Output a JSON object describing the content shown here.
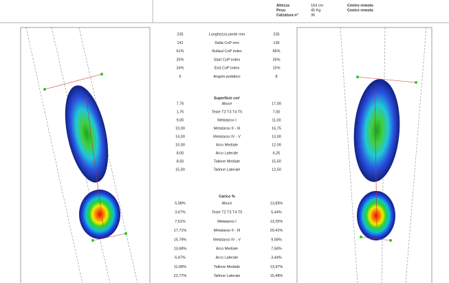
{
  "header": {
    "fields": [
      {
        "label": "Altezza",
        "value": "164 cm",
        "note": "Centro remoto"
      },
      {
        "label": "Peso",
        "value": "45 Kg",
        "note": "Centro remoto"
      },
      {
        "label": "Calzatura n°",
        "value": "36"
      }
    ]
  },
  "metrics": {
    "rows": [
      [
        "235",
        "Lunghezza piede mm",
        "235"
      ],
      [
        "141",
        "Dalla CoP mm",
        "135"
      ],
      [
        "61%",
        "Rullaul CoP index",
        "66%"
      ],
      [
        "25%",
        "Start CoP index",
        "26%"
      ],
      [
        "24%",
        "End CoP index",
        "15%"
      ],
      [
        "6",
        "Angolo podalico",
        "8"
      ]
    ]
  },
  "surface": {
    "title": "Superficie cm²",
    "rows": [
      [
        "7,75",
        "Alluce",
        "17,00"
      ],
      [
        "1,75",
        "Teste T2 T3 T4 T5",
        "7,00"
      ],
      [
        "9,00",
        "Metatarso I",
        "11,00"
      ],
      [
        "10,00",
        "Metatarso II - III",
        "16,75"
      ],
      [
        "14,00",
        "Metatarso IV - V",
        "13,00"
      ],
      [
        "10,00",
        "Arco Mediale",
        "12,00"
      ],
      [
        "8,00",
        "Arco Laterale",
        "6,25"
      ],
      [
        "8,50",
        "Tallone Mediale",
        "15,50"
      ],
      [
        "15,00",
        "Tallone Laterale",
        "12,50"
      ]
    ]
  },
  "load": {
    "title": "Carico %",
    "rows": [
      [
        "5,98%",
        "Alluce",
        "13,83%"
      ],
      [
        "3,67%",
        "Teste T2 T3 T4 T5",
        "5,44%"
      ],
      [
        "7,61%",
        "Metatarso I",
        "13,25%"
      ],
      [
        "17,71%",
        "Metatarso II - III",
        "20,41%"
      ],
      [
        "15,79%",
        "Metatarso IV - V",
        "9,58%"
      ],
      [
        "13,68%",
        "Arco Mediale",
        "7,58%"
      ],
      [
        "6,47%",
        "Arco Laterale",
        "3,44%"
      ],
      [
        "11,68%",
        "Tallone Mediale",
        "13,97%"
      ],
      [
        "22,77%",
        "Tallone Laterale",
        "15,48%"
      ]
    ]
  }
}
